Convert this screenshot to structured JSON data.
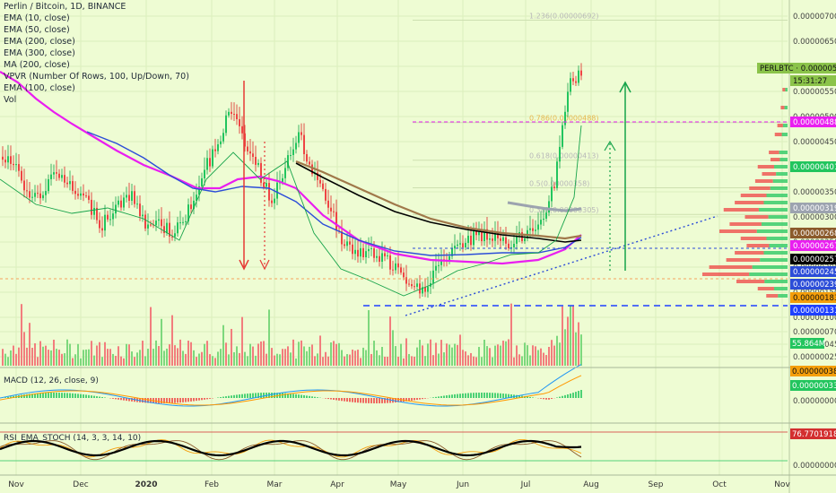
{
  "chart_data": {
    "type": "candlestick",
    "symbol": "Perlin / Bitcoin, 1D, BINANCE",
    "legend": [
      "Perlin / Bitcoin, 1D, BINANCE",
      "EMA (10, close)",
      "EMA (50, close)",
      "EMA (200, close)",
      "EMA (300, close)",
      "MA (200, close)",
      "VPVR (Number Of Rows, 100, Up/Down, 70)",
      "EMA (100, close)",
      "Vol"
    ],
    "x_ticks": [
      "Nov",
      "Dec",
      "2020",
      "Feb",
      "Mar",
      "Apr",
      "May",
      "Jun",
      "Jul",
      "Aug",
      "Sep",
      "Oct",
      "Nov"
    ],
    "y_ticks": [
      "0.00000700",
      "0.00000650",
      "0.00000600",
      "0.00000550",
      "0.00000500",
      "0.00000450",
      "0.00000400",
      "0.00000350",
      "0.00000300",
      "0.00000250",
      "0.00000200",
      "0.00000150",
      "0.00000100",
      "0.00000070",
      "0.00000045",
      "0.00000025"
    ],
    "fib_levels": [
      {
        "label": "1.236(0.00000692)",
        "value": 6.92e-06
      },
      {
        "label": "0.786(0.00000488)",
        "value": 4.88e-06
      },
      {
        "label": "0.618(0.00000413)",
        "value": 4.13e-06
      },
      {
        "label": "0.5(0.00000358)",
        "value": 3.58e-06
      },
      {
        "label": "0.382(0.00000305)",
        "value": 3.05e-06
      }
    ],
    "price_labels": [
      {
        "text": "PERLBTC",
        "value": "0.00000594",
        "color": "#8bc34a"
      },
      {
        "text": "15:31:27",
        "color": "#8bc34a"
      },
      {
        "text": "0.00000488",
        "color": "#e91ef0"
      },
      {
        "text": "0.00000401",
        "color": "#22c55e"
      },
      {
        "text": "0.00000319",
        "color": "#9ca3af"
      },
      {
        "text": "0.00000268",
        "color": "#8b5a2b"
      },
      {
        "text": "0.00000267",
        "color": "#e91ef0"
      },
      {
        "text": "0.00000257",
        "color": "#000000"
      },
      {
        "text": "0.00000245",
        "color": "#2c4dd8"
      },
      {
        "text": "0.00000239",
        "color": "#2c4dd8"
      },
      {
        "text": "0.00000183",
        "color": "#f59e0b"
      },
      {
        "text": "0.00000131",
        "color": "#1e40ff"
      }
    ],
    "volume": {
      "label": "55.864M",
      "color": "#22c55e"
    },
    "macd": {
      "title": "MACD (12, 26, close, 9)",
      "labels": [
        "0.00000038",
        "0.00000033"
      ],
      "colors": [
        "#f59e0b",
        "#22c55e"
      ],
      "ticks": [
        "0.00000000"
      ]
    },
    "rsi_stoch": {
      "title": "RSI_EMA_STOCH (14, 3, 3, 14, 10)",
      "value": "76.77019182",
      "value_color": "#d32f2f",
      "ticks": [
        "0.00000000"
      ]
    },
    "closes": [
      4.2e-06,
      3.95e-06,
      3.3e-06,
      3.6e-06,
      3.85e-06,
      3.5e-06,
      3.3e-06,
      2.85e-06,
      3.2e-06,
      3.45e-06,
      2.9e-06,
      2.85e-06,
      2.7e-06,
      3e-06,
      3.8e-06,
      4.3e-06,
      5.1e-06,
      4.6e-06,
      4e-06,
      3.3e-06,
      4.05e-06,
      4.6e-06,
      3.8e-06,
      3.3e-06,
      2.55e-06,
      2.25e-06,
      2.3e-06,
      2.15e-06,
      1.9e-06,
      1.5e-06,
      1.65e-06,
      2.1e-06,
      2.3e-06,
      2.55e-06,
      2.65e-06,
      2.55e-06,
      2.48e-06,
      2.62e-06,
      2.9e-06,
      3.6e-06,
      5.6e-06,
      5.94e-06
    ]
  }
}
